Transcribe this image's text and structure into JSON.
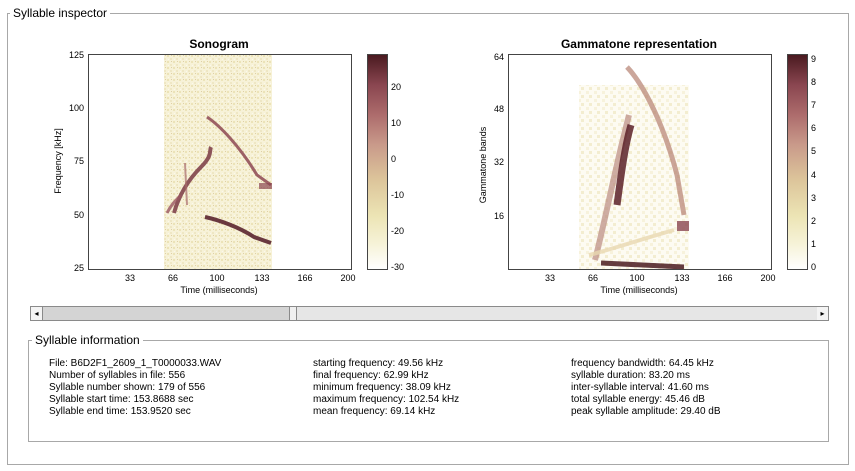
{
  "window": {
    "title": "Syllable inspector"
  },
  "sonogram": {
    "title": "Sonogram",
    "ylabel": "Frequency [kHz]",
    "xlabel": "Time (milliseconds)",
    "yticks": [
      "125",
      "100",
      "75",
      "50",
      "25"
    ],
    "xticks": [
      "33",
      "66",
      "100",
      "133",
      "166",
      "200"
    ],
    "colorbar_ticks": [
      "20",
      "10",
      "0",
      "-10",
      "-20",
      "-30"
    ]
  },
  "gammatone": {
    "title": "Gammatone representation",
    "ylabel": "Gammatone bands",
    "xlabel": "Time (milliseconds)",
    "yticks": [
      "64",
      "48",
      "32",
      "16"
    ],
    "xticks": [
      "33",
      "66",
      "100",
      "133",
      "166",
      "200"
    ],
    "colorbar_ticks": [
      "9",
      "8",
      "7",
      "6",
      "5",
      "4",
      "3",
      "2",
      "1",
      "0"
    ]
  },
  "scrollbar": {
    "left_arrow": "◂",
    "right_arrow": "▸"
  },
  "info": {
    "title": "Syllable information",
    "col1": [
      "File: B6D2F1_2609_1_T0000033.WAV",
      "Number of syllables in file: 556",
      "Syllable number shown: 179 of 556",
      "Syllable start time: 153.8688 sec",
      "Syllable end time: 153.9520 sec"
    ],
    "col2": [
      "starting frequency: 49.56 kHz",
      "final frequency: 62.99 kHz",
      "minimum frequency: 38.09 kHz",
      "maximum frequency: 102.54 kHz",
      "mean frequency: 69.14 kHz"
    ],
    "col3": [
      "frequency bandwidth: 64.45 kHz",
      "syllable duration: 83.20 ms",
      "inter-syllable interval: 41.60 ms",
      "total syllable energy: 45.46 dB",
      "peak syllable amplitude: 29.40 dB"
    ]
  }
}
